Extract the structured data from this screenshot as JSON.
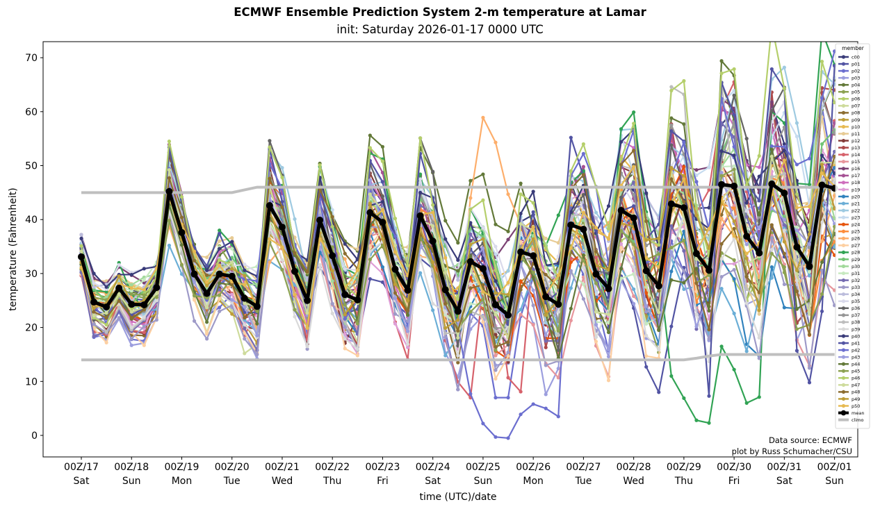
{
  "chart_data": {
    "type": "line",
    "title": "ECMWF Ensemble Prediction System 2-m temperature at Lamar",
    "subtitle": "init: Saturday 2026-01-17 0000 UTC",
    "xlabel": "time (UTC)/date",
    "ylabel": "temperature (Fahrenheit)",
    "ylim": [
      -4,
      73
    ],
    "yticks": [
      0,
      10,
      20,
      30,
      40,
      50,
      60,
      70
    ],
    "time_step_hours": 6,
    "n_steps": 61,
    "xticks": [
      {
        "step": 0,
        "line1": "00Z/17",
        "line2": "Sat"
      },
      {
        "step": 4,
        "line1": "00Z/18",
        "line2": "Sun"
      },
      {
        "step": 8,
        "line1": "00Z/19",
        "line2": "Mon"
      },
      {
        "step": 12,
        "line1": "00Z/20",
        "line2": "Tue"
      },
      {
        "step": 16,
        "line1": "00Z/21",
        "line2": "Wed"
      },
      {
        "step": 20,
        "line1": "00Z/22",
        "line2": "Thu"
      },
      {
        "step": 24,
        "line1": "00Z/23",
        "line2": "Fri"
      },
      {
        "step": 28,
        "line1": "00Z/24",
        "line2": "Sat"
      },
      {
        "step": 32,
        "line1": "00Z/25",
        "line2": "Sun"
      },
      {
        "step": 36,
        "line1": "00Z/26",
        "line2": "Mon"
      },
      {
        "step": 40,
        "line1": "00Z/27",
        "line2": "Tue"
      },
      {
        "step": 44,
        "line1": "00Z/28",
        "line2": "Wed"
      },
      {
        "step": 48,
        "line1": "00Z/29",
        "line2": "Thu"
      },
      {
        "step": 52,
        "line1": "00Z/30",
        "line2": "Fri"
      },
      {
        "step": 56,
        "line1": "00Z/31",
        "line2": "Sat"
      },
      {
        "step": 60,
        "line1": "00Z/01",
        "line2": "Sun"
      }
    ],
    "legend": {
      "title": "member",
      "placement": "right-inside"
    },
    "mean": {
      "name": "mean",
      "color": "#000000",
      "values": [
        33.1,
        24.7,
        23.8,
        27.3,
        24.3,
        24.2,
        27.4,
        45.2,
        37.6,
        29.9,
        26.3,
        29.9,
        29.5,
        25.4,
        23.9,
        42.6,
        38.6,
        30.4,
        25.0,
        39.9,
        33.3,
        26.1,
        25.1,
        41.3,
        39.5,
        30.8,
        26.9,
        40.7,
        36.0,
        27.0,
        23.0,
        32.2,
        30.9,
        24.2,
        22.3,
        34.0,
        33.3,
        25.7,
        24.3,
        39.0,
        38.2,
        29.9,
        27.2,
        41.7,
        40.3,
        30.5,
        27.7,
        42.9,
        42.2,
        33.7,
        30.6,
        46.5,
        46.2,
        36.9,
        33.8,
        46.6,
        44.9,
        34.9,
        31.3,
        46.4,
        45.8
      ]
    },
    "climo": {
      "name": "climo",
      "color": "#bfbfbf",
      "high": [
        45,
        45,
        45,
        45,
        45,
        45,
        45,
        45,
        45,
        45,
        45,
        45,
        45,
        45.5,
        46,
        46,
        46,
        46,
        46,
        46,
        46,
        46,
        46,
        46,
        46,
        46,
        46,
        46,
        46,
        46,
        46,
        46,
        46,
        46,
        46,
        46,
        46,
        46,
        46,
        46,
        46,
        46,
        46,
        46,
        46,
        46,
        46,
        46,
        46,
        46,
        46,
        46,
        46,
        46,
        46,
        46,
        46,
        46,
        46,
        46,
        46
      ],
      "low": [
        14,
        14,
        14,
        14,
        14,
        14,
        14,
        14,
        14,
        14,
        14,
        14,
        14,
        14,
        14,
        14,
        14,
        14,
        14,
        14,
        14,
        14,
        14,
        14,
        14,
        14,
        14,
        14,
        14,
        14,
        14,
        14,
        14,
        14,
        14,
        14,
        14,
        14,
        14,
        14,
        14,
        14,
        14,
        14,
        14,
        14,
        14,
        14,
        14,
        14.3,
        14.7,
        15,
        15,
        15,
        15,
        15,
        15,
        15,
        15,
        15,
        15
      ]
    },
    "members": [
      {
        "name": "c00",
        "color": "#393b79",
        "offset_scale": 0.9,
        "seed": 1
      },
      {
        "name": "p01",
        "color": "#5254a3",
        "offset_scale": 1.1,
        "seed": 2
      },
      {
        "name": "p02",
        "color": "#6b6ecf",
        "offset_scale": 1.0,
        "seed": 3
      },
      {
        "name": "p03",
        "color": "#9c9ede",
        "offset_scale": 1.0,
        "seed": 4
      },
      {
        "name": "p04",
        "color": "#637939",
        "offset_scale": 1.2,
        "seed": 5
      },
      {
        "name": "p05",
        "color": "#8ca252",
        "offset_scale": 1.0,
        "seed": 6
      },
      {
        "name": "p06",
        "color": "#b5cf6b",
        "offset_scale": 1.0,
        "seed": 7
      },
      {
        "name": "p07",
        "color": "#cedb9c",
        "offset_scale": 1.1,
        "seed": 8
      },
      {
        "name": "p08",
        "color": "#8c6d31",
        "offset_scale": 1.0,
        "seed": 9
      },
      {
        "name": "p09",
        "color": "#bd9e39",
        "offset_scale": 0.9,
        "seed": 10
      },
      {
        "name": "p10",
        "color": "#e7ba52",
        "offset_scale": 0.9,
        "seed": 11
      },
      {
        "name": "p11",
        "color": "#e7cb94",
        "offset_scale": 1.0,
        "seed": 12
      },
      {
        "name": "p12",
        "color": "#843c39",
        "offset_scale": 1.0,
        "seed": 13
      },
      {
        "name": "p13",
        "color": "#ad494a",
        "offset_scale": 1.2,
        "seed": 14
      },
      {
        "name": "p14",
        "color": "#d6616b",
        "offset_scale": 1.3,
        "seed": 15
      },
      {
        "name": "p15",
        "color": "#e7969c",
        "offset_scale": 1.0,
        "seed": 16
      },
      {
        "name": "p16",
        "color": "#7b4173",
        "offset_scale": 1.1,
        "seed": 17
      },
      {
        "name": "p17",
        "color": "#a55194",
        "offset_scale": 1.0,
        "seed": 18
      },
      {
        "name": "p18",
        "color": "#ce6dbd",
        "offset_scale": 1.0,
        "seed": 19
      },
      {
        "name": "p19",
        "color": "#de9ed6",
        "offset_scale": 1.0,
        "seed": 20
      },
      {
        "name": "p20",
        "color": "#3182bd",
        "offset_scale": 1.0,
        "seed": 21
      },
      {
        "name": "p21",
        "color": "#6baed6",
        "offset_scale": 1.0,
        "seed": 22
      },
      {
        "name": "p22",
        "color": "#9ecae1",
        "offset_scale": 1.0,
        "seed": 23
      },
      {
        "name": "p23",
        "color": "#c6dbef",
        "offset_scale": 1.0,
        "seed": 24
      },
      {
        "name": "p24",
        "color": "#e6550d",
        "offset_scale": 1.0,
        "seed": 25
      },
      {
        "name": "p25",
        "color": "#fd8d3c",
        "offset_scale": 1.0,
        "seed": 26
      },
      {
        "name": "p26",
        "color": "#fdae6b",
        "offset_scale": 1.2,
        "seed": 27
      },
      {
        "name": "p27",
        "color": "#fdd0a2",
        "offset_scale": 1.0,
        "seed": 28
      },
      {
        "name": "p28",
        "color": "#31a354",
        "offset_scale": 1.3,
        "seed": 29
      },
      {
        "name": "p29",
        "color": "#74c476",
        "offset_scale": 1.0,
        "seed": 30
      },
      {
        "name": "p30",
        "color": "#a1d99b",
        "offset_scale": 1.0,
        "seed": 31
      },
      {
        "name": "p31",
        "color": "#c7e9c0",
        "offset_scale": 1.0,
        "seed": 32
      },
      {
        "name": "p32",
        "color": "#756bb1",
        "offset_scale": 1.0,
        "seed": 33
      },
      {
        "name": "p33",
        "color": "#9e9ac8",
        "offset_scale": 1.0,
        "seed": 34
      },
      {
        "name": "p34",
        "color": "#bcbddc",
        "offset_scale": 1.0,
        "seed": 35
      },
      {
        "name": "p35",
        "color": "#dadaeb",
        "offset_scale": 1.0,
        "seed": 36
      },
      {
        "name": "p36",
        "color": "#636363",
        "offset_scale": 1.1,
        "seed": 37
      },
      {
        "name": "p37",
        "color": "#969696",
        "offset_scale": 1.0,
        "seed": 38
      },
      {
        "name": "p38",
        "color": "#bdbdbd",
        "offset_scale": 1.1,
        "seed": 39
      },
      {
        "name": "p39",
        "color": "#d9d9d9",
        "offset_scale": 1.0,
        "seed": 40
      },
      {
        "name": "p40",
        "color": "#393b79",
        "offset_scale": 1.0,
        "seed": 41
      },
      {
        "name": "p41",
        "color": "#5254a3",
        "offset_scale": 1.2,
        "seed": 42
      },
      {
        "name": "p42",
        "color": "#6b6ecf",
        "offset_scale": 1.3,
        "seed": 43
      },
      {
        "name": "p43",
        "color": "#9c9ede",
        "offset_scale": 1.0,
        "seed": 44
      },
      {
        "name": "p44",
        "color": "#637939",
        "offset_scale": 1.2,
        "seed": 45
      },
      {
        "name": "p45",
        "color": "#8ca252",
        "offset_scale": 1.0,
        "seed": 46
      },
      {
        "name": "p46",
        "color": "#b5cf6b",
        "offset_scale": 1.0,
        "seed": 47
      },
      {
        "name": "p47",
        "color": "#cedb9c",
        "offset_scale": 1.0,
        "seed": 48
      },
      {
        "name": "p48",
        "color": "#8c6d31",
        "offset_scale": 1.0,
        "seed": 49
      },
      {
        "name": "p49",
        "color": "#bd9e39",
        "offset_scale": 1.0,
        "seed": 50
      },
      {
        "name": "p50",
        "color": "#e7ba52",
        "offset_scale": 1.0,
        "seed": 51
      }
    ],
    "member_notes": "Individual member traces scatter around the mean with spread growing from ~±5F early to ~±20F late; notable extremes: p26 ~59F at 00Z/25, p42 ~-0.5F at 12Z/25, p44 ~69F at 18Z/29, p28 ~2F at 18Z/29, p13 ~64F at 00Z/01.",
    "annotations": [
      "Data source: ECMWF",
      "plot by Russ Schumacher/CSU"
    ]
  }
}
